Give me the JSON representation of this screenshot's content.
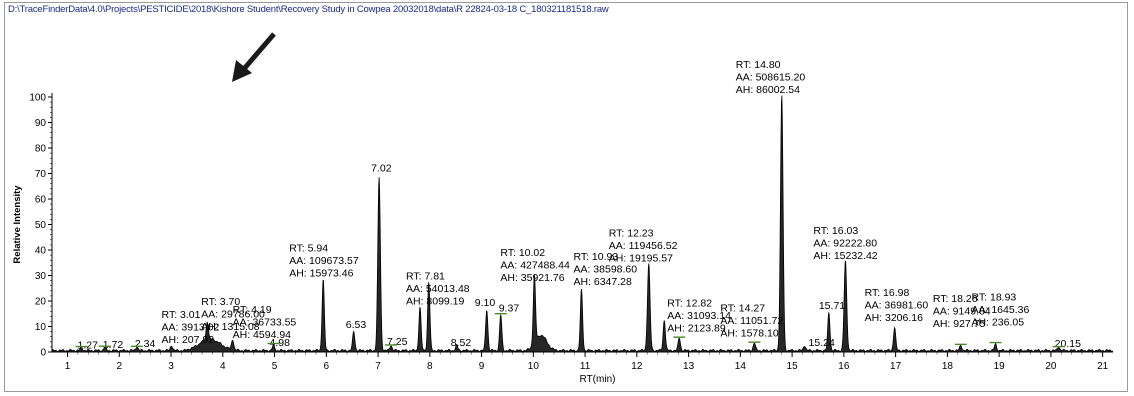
{
  "file_path": "D:\\TraceFinderData\\4.0\\Projects\\PESTICIDE\\2018\\Kishore Student\\Recovery Study in Cowpea 20032018\\data\\R 22824-03-18  C_180321181518.raw",
  "chart_data": {
    "type": "line",
    "xlabel": "RT(min)",
    "ylabel": "Relative Intensity",
    "xlim": [
      0.7,
      21.2
    ],
    "ylim": [
      0,
      100
    ],
    "x_ticks": [
      1,
      2,
      3,
      4,
      5,
      6,
      7,
      8,
      9,
      10,
      11,
      12,
      13,
      14,
      15,
      16,
      17,
      18,
      19,
      20,
      21
    ],
    "y_ticks": [
      0,
      10,
      20,
      30,
      40,
      50,
      60,
      70,
      80,
      90,
      100
    ],
    "line_color": "#000000",
    "peaks": [
      {
        "rt": 1.27,
        "height": 1.0,
        "label": "1.27"
      },
      {
        "rt": 1.72,
        "height": 1.2,
        "label": "1.72"
      },
      {
        "rt": 2.34,
        "height": 1.6,
        "label": "2.34"
      },
      {
        "rt": 3.01,
        "height": 2.0,
        "lines": [
          "RT: 3.01",
          "AA: 3913.02",
          "AH: 207.92"
        ]
      },
      {
        "rt": 3.7,
        "height": 7.0,
        "lines": [
          "RT: 3.70",
          "AA: 29786.00",
          "AH: 1315.08"
        ]
      },
      {
        "rt": 4.19,
        "height": 4.0,
        "lines": [
          "RT: 4.19",
          "AA: 36733.55",
          "AH: 4594.94"
        ]
      },
      {
        "rt": 4.98,
        "height": 2.0,
        "label": "4.98"
      },
      {
        "rt": 5.94,
        "height": 28.0,
        "lines": [
          "RT: 5.94",
          "AA: 109673.57",
          "AH: 15973.46"
        ]
      },
      {
        "rt": 6.53,
        "height": 7.5,
        "label": "6.53"
      },
      {
        "rt": 7.02,
        "height": 68.0,
        "label": "7.02"
      },
      {
        "rt": 7.25,
        "height": 2.0,
        "label": "7.25"
      },
      {
        "rt": 7.81,
        "height": 17.0,
        "lines": [
          "RT: 7.81",
          "AA: 54013.48",
          "AH: 8099.19"
        ]
      },
      {
        "rt": 7.98,
        "height": 27.0
      },
      {
        "rt": 8.52,
        "height": 2.0,
        "label": "8.52"
      },
      {
        "rt": 9.1,
        "height": 16.0,
        "label": "9.10"
      },
      {
        "rt": 9.37,
        "height": 14.0,
        "label": "9.37"
      },
      {
        "rt": 10.02,
        "height": 27.0,
        "lines": [
          "RT: 10.02",
          "AA: 427488.44",
          "AH: 35921.76"
        ]
      },
      {
        "rt": 10.93,
        "height": 24.0,
        "lines": [
          "RT: 10.93",
          "AA: 38598.60",
          "AH: 6347.28"
        ]
      },
      {
        "rt": 12.23,
        "height": 34.0,
        "lines": [
          "RT: 12.23",
          "AA: 119456.52",
          "AH: 19195.57"
        ]
      },
      {
        "rt": 12.53,
        "height": 12.0
      },
      {
        "rt": 12.82,
        "height": 5.0,
        "lines": [
          "RT: 12.82",
          "AA: 31093.14",
          "AH: 2123.89"
        ]
      },
      {
        "rt": 14.27,
        "height": 3.0,
        "lines": [
          "RT: 14.27",
          "AA: 11051.72",
          "AH: 1578.10"
        ]
      },
      {
        "rt": 14.8,
        "height": 100.0,
        "lines": [
          "RT: 14.80",
          "AA: 508615.20",
          "AH: 86002.54"
        ]
      },
      {
        "rt": 15.24,
        "height": 2.0,
        "label": "15.24"
      },
      {
        "rt": 15.71,
        "height": 15.0,
        "label": "15.71"
      },
      {
        "rt": 16.03,
        "height": 35.0,
        "lines": [
          "RT: 16.03",
          "AA: 92222.80",
          "AH: 15232.42"
        ]
      },
      {
        "rt": 16.98,
        "height": 9.0,
        "lines": [
          "RT: 16.98",
          "AA: 36981.60",
          "AH: 3206.16"
        ]
      },
      {
        "rt": 18.26,
        "height": 2.0,
        "lines": [
          "RT: 18.26",
          "AA: 9149.84",
          "AH: 927.75"
        ]
      },
      {
        "rt": 18.93,
        "height": 2.5,
        "lines": [
          "RT: 18.93",
          "AA: 1645.36",
          "AH: 236.05"
        ]
      },
      {
        "rt": 20.15,
        "height": 1.5,
        "label": "20.15"
      }
    ]
  }
}
